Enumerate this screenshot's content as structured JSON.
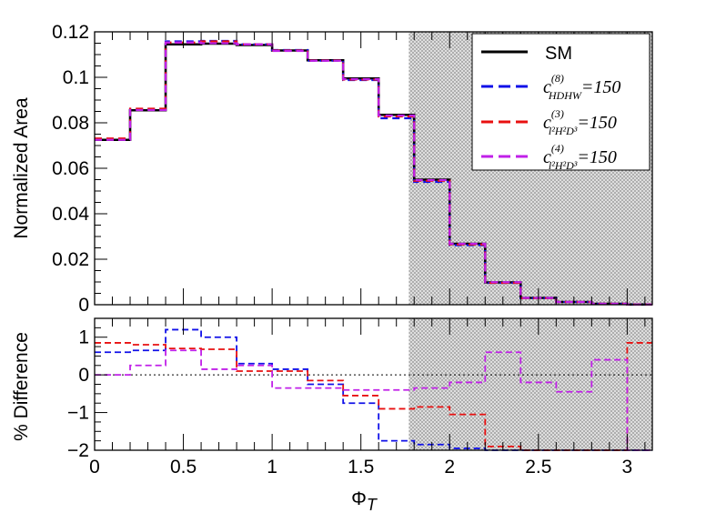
{
  "chart_data": [
    {
      "type": "line",
      "panel": "top",
      "xlabel": "",
      "ylabel": "Normalized Area",
      "xlim": [
        0,
        3.14159
      ],
      "ylim": [
        0,
        0.12
      ],
      "yticks": [
        "0",
        "0.02",
        "0.04",
        "0.06",
        "0.08",
        "0.1",
        "0.12"
      ],
      "shaded_region_xmin": 1.77,
      "bin_edges": [
        0,
        0.2,
        0.4,
        0.6,
        0.8,
        1.0,
        1.2,
        1.4,
        1.6,
        1.8,
        2.0,
        2.2,
        2.4,
        2.6,
        2.8,
        3.0,
        3.14159
      ],
      "series": [
        {
          "key": "sm",
          "name": "SM",
          "color": "#000000",
          "dashed": false,
          "values": [
            0.0725,
            0.0855,
            0.1145,
            0.1148,
            0.1142,
            0.1118,
            0.1075,
            0.0995,
            0.0835,
            0.055,
            0.0268,
            0.0098,
            0.003,
            0.0012,
            0.0004,
            0.0001
          ]
        },
        {
          "key": "hdhw",
          "name": "c(8) HDHW=150",
          "color": "#1010e8",
          "dashed": true,
          "values": [
            0.0729,
            0.086,
            0.1158,
            0.116,
            0.1145,
            0.112,
            0.1073,
            0.0988,
            0.082,
            0.054,
            0.0262,
            0.0096,
            0.0029,
            0.0012,
            0.0004,
            0.0001
          ]
        },
        {
          "key": "l2h2d3_3",
          "name": "c(3) l²H²D³=150",
          "color": "#e81010",
          "dashed": true,
          "values": [
            0.0731,
            0.0862,
            0.1153,
            0.1158,
            0.1145,
            0.1118,
            0.1074,
            0.099,
            0.0828,
            0.0545,
            0.0265,
            0.0096,
            0.0029,
            0.0012,
            0.0004,
            0.0001
          ]
        },
        {
          "key": "l2h2d3_4",
          "name": "c(4) l²H²D³=150",
          "color": "#c020e8",
          "dashed": true,
          "values": [
            0.0725,
            0.0856,
            0.1153,
            0.115,
            0.1145,
            0.1116,
            0.1073,
            0.0992,
            0.0832,
            0.0548,
            0.0268,
            0.0099,
            0.003,
            0.0012,
            0.0004,
            0.0001
          ]
        }
      ]
    },
    {
      "type": "line",
      "panel": "bottom",
      "xlabel": "ΦT",
      "ylabel": "% Difference",
      "xlim": [
        0,
        3.14159
      ],
      "ylim": [
        -2,
        1.5
      ],
      "xticks": [
        "0",
        "0.5",
        "1",
        "1.5",
        "2",
        "2.5",
        "3"
      ],
      "yticks": [
        "−2",
        "−1",
        "0",
        "1"
      ],
      "shaded_region_xmin": 1.77,
      "bin_edges": [
        0,
        0.2,
        0.4,
        0.6,
        0.8,
        1.0,
        1.2,
        1.4,
        1.6,
        1.8,
        2.0,
        2.2,
        2.4,
        2.6,
        2.8,
        3.0,
        3.14159
      ],
      "series": [
        {
          "key": "hdhw",
          "name": "c(8) HDHW=150",
          "color": "#1010e8",
          "values": [
            0.6,
            0.65,
            1.2,
            1.0,
            0.3,
            0.15,
            -0.25,
            -0.75,
            -1.75,
            -1.85,
            -1.95,
            -2.0,
            -2.0,
            -2.0,
            -2.0,
            -2.0
          ]
        },
        {
          "key": "l2h2d3_3",
          "name": "c(3) l²H²D³=150",
          "color": "#e81010",
          "values": [
            0.85,
            0.8,
            0.7,
            0.68,
            0.1,
            0.1,
            -0.15,
            -0.55,
            -0.9,
            -0.85,
            -1.05,
            -1.9,
            -2.0,
            -2.0,
            -2.0,
            0.85
          ]
        },
        {
          "key": "l2h2d3_4",
          "name": "c(4) l²H²D³=150",
          "color": "#c020e8",
          "values": [
            0.0,
            0.25,
            0.65,
            0.15,
            0.25,
            -0.35,
            -0.35,
            -0.4,
            -0.4,
            -0.35,
            -0.2,
            0.6,
            -0.2,
            -0.45,
            0.4,
            -2.0
          ]
        }
      ]
    }
  ],
  "legend": {
    "sm": "SM",
    "hdhw_base": "c",
    "hdhw_sup": "(8)",
    "hdhw_sub": "HDHW",
    "hdhw_val": "=150",
    "l3_base": "c",
    "l3_sup": "(3)",
    "l3_sub": "l²H²D³",
    "l3_val": "=150",
    "l4_base": "c",
    "l4_sup": "(4)",
    "l4_sub": "l²H²D³",
    "l4_val": "=150"
  },
  "xaxis": {
    "title_main": "Φ",
    "title_sub": "T"
  }
}
